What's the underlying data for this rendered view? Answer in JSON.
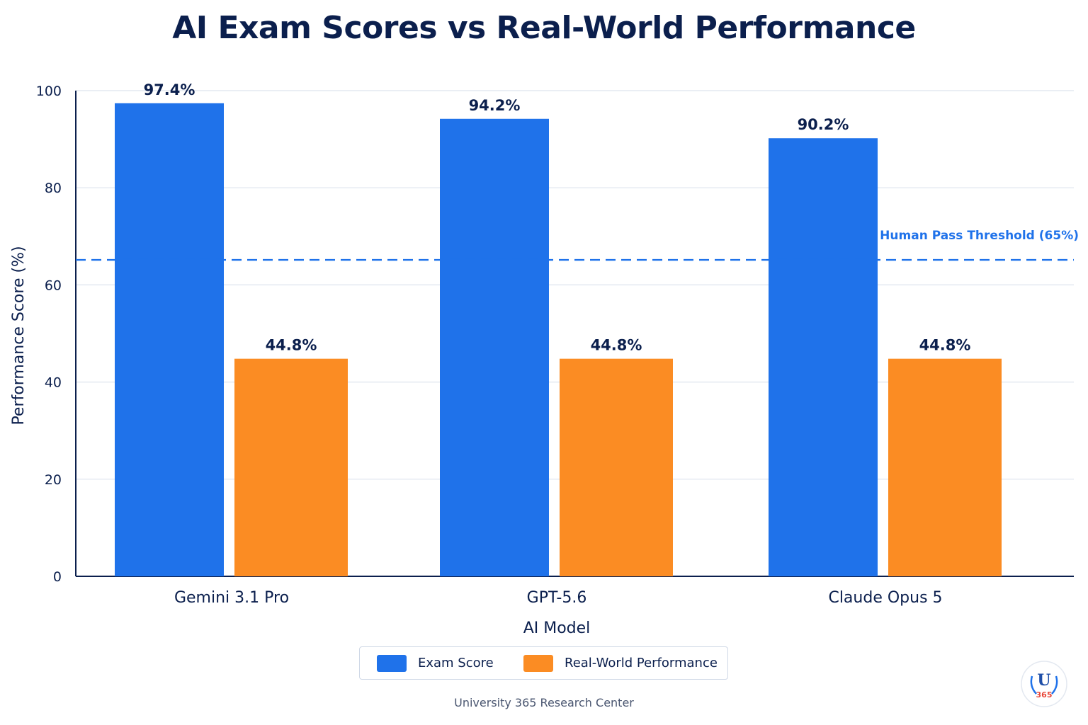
{
  "chart_data": {
    "type": "bar",
    "title": "AI Exam Scores vs Real-World Performance",
    "xlabel": "AI Model",
    "ylabel": "Performance Score (%)",
    "ylim": [
      0,
      100
    ],
    "yticks": [
      "0",
      "20",
      "40",
      "60",
      "80",
      "100"
    ],
    "categories": [
      "Gemini 3.1 Pro",
      "GPT-5.6",
      "Claude Opus 5"
    ],
    "series": [
      {
        "name": "Exam Score",
        "color": "#1f72ea",
        "values": [
          97.4,
          94.2,
          90.2
        ],
        "labels": [
          "97.4%",
          "94.2%",
          "90.2%"
        ]
      },
      {
        "name": "Real-World Performance",
        "color": "#fb8c23",
        "values": [
          44.8,
          44.8,
          44.8
        ],
        "labels": [
          "44.8%",
          "44.8%",
          "44.8%"
        ]
      }
    ],
    "reference_line": {
      "value": 65,
      "label": "Human Pass Threshold (65%)",
      "color": "#1f72ea",
      "style": "dashed"
    },
    "grid": true,
    "legend_position": "bottom-center"
  },
  "footer": {
    "source": "University 365 Research Center"
  },
  "logo": {
    "letter": "U",
    "number": "365",
    "icon": "university-laurel-logo"
  }
}
